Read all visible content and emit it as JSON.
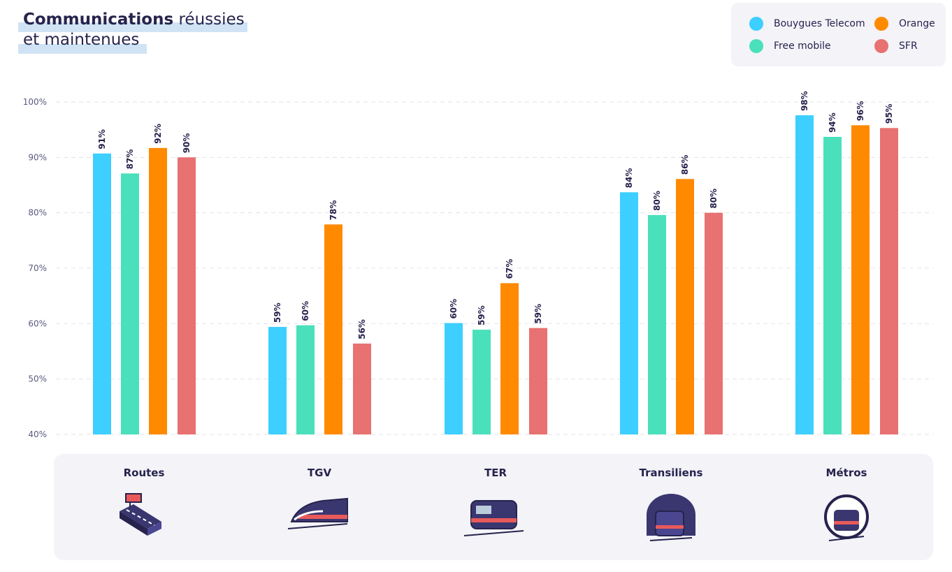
{
  "title": {
    "bold": "Communications",
    "rest": " réussies",
    "line2": "et maintenues"
  },
  "legend": [
    {
      "name": "Bouygues Telecom",
      "color": "#3ccfff"
    },
    {
      "name": "Orange",
      "color": "#ff8a00"
    },
    {
      "name": "Free mobile",
      "color": "#4ae0bb"
    },
    {
      "name": "SFR",
      "color": "#e87171"
    }
  ],
  "chart_data": {
    "type": "bar",
    "ylim": [
      40,
      100
    ],
    "yticks": [
      "40%",
      "50%",
      "60%",
      "70%",
      "80%",
      "90%",
      "100%"
    ],
    "grid": true,
    "legend_placement": "top-right",
    "categories": [
      "Routes",
      "TGV",
      "TER",
      "Transiliens",
      "Métros"
    ],
    "category_icons": [
      "road-icon",
      "tgv-train-icon",
      "ter-train-icon",
      "transilien-tunnel-train-icon",
      "metro-tunnel-icon"
    ],
    "series": [
      {
        "name": "Bouygues Telecom",
        "color": "#3ccfff",
        "values": [
          90.7,
          59.4,
          60.1,
          83.7,
          97.6
        ],
        "labels": [
          "91%",
          "59%",
          "60%",
          "84%",
          "98%"
        ]
      },
      {
        "name": "Free mobile",
        "color": "#4ae0bb",
        "values": [
          87.1,
          59.7,
          58.9,
          79.6,
          93.7
        ],
        "labels": [
          "87%",
          "60%",
          "59%",
          "80%",
          "94%"
        ]
      },
      {
        "name": "Orange",
        "color": "#ff8a00",
        "values": [
          91.7,
          77.9,
          67.3,
          86.1,
          95.8
        ],
        "labels": [
          "92%",
          "78%",
          "67%",
          "86%",
          "96%"
        ]
      },
      {
        "name": "SFR",
        "color": "#e87171",
        "values": [
          90.0,
          56.4,
          59.2,
          80.0,
          95.3
        ],
        "labels": [
          "90%",
          "56%",
          "59%",
          "80%",
          "95%"
        ]
      }
    ]
  }
}
